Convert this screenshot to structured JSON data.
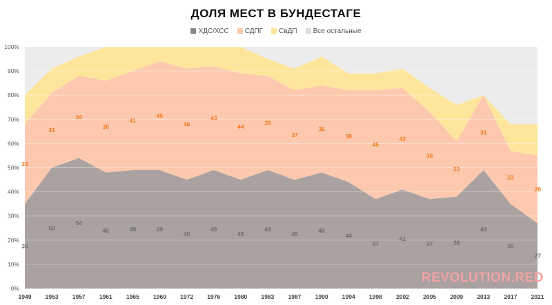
{
  "watermark": "REVOLUTION.RED",
  "chart_data": {
    "type": "area",
    "stacked": true,
    "title": "ДОЛЯ МЕСТ В БУНДЕСТАГЕ",
    "x": [
      "1949",
      "1953",
      "1957",
      "1961",
      "1965",
      "1969",
      "1972",
      "1976",
      "1980",
      "1983",
      "1987",
      "1990",
      "1994",
      "1998",
      "2002",
      "2005",
      "2009",
      "2013",
      "2017",
      "2021"
    ],
    "ylim": [
      0,
      100
    ],
    "yticks": [
      "0%",
      "10%",
      "20%",
      "30%",
      "40%",
      "50%",
      "60%",
      "70%",
      "80%",
      "90%",
      "100%"
    ],
    "legend_position": "top",
    "grid": true,
    "series": [
      {
        "name": "ХДС/ХСС",
        "color": "#aaa1a1",
        "values": [
          35,
          50,
          54,
          48,
          49,
          49,
          45,
          49,
          45,
          49,
          45,
          48,
          44,
          37,
          41,
          37,
          38,
          49,
          35,
          27
        ]
      },
      {
        "name": "СДПГ",
        "color": "#fcc9ae",
        "values": [
          33,
          31,
          34,
          38,
          41,
          45,
          46,
          43,
          44,
          39,
          37,
          36,
          38,
          45,
          42,
          36,
          23,
          31,
          22,
          28
        ]
      },
      {
        "name": "СвДП",
        "color": "#fde59c",
        "values": [
          12,
          10,
          8,
          14,
          10,
          6,
          9,
          8,
          11,
          7,
          9,
          12,
          7,
          7,
          8,
          10,
          15,
          0,
          11,
          13
        ]
      },
      {
        "name": "Все остальные",
        "color": "#ececec",
        "values": [
          20,
          9,
          4,
          0,
          0,
          0,
          0,
          0,
          0,
          5,
          9,
          4,
          11,
          11,
          9,
          17,
          24,
          20,
          32,
          32
        ]
      }
    ],
    "data_labels": {
      "ХДС/ХСС": [
        "35",
        "50",
        "54",
        "48",
        "49",
        "49",
        "45",
        "49",
        "45",
        "49",
        "45",
        "48",
        "44",
        "37",
        "41",
        "37",
        "38",
        "49",
        "35",
        "27"
      ],
      "СДПГ": [
        "33",
        "31",
        "34",
        "38",
        "41",
        "45",
        "46",
        "43",
        "44",
        "39",
        "37",
        "36",
        "38",
        "45",
        "42",
        "36",
        "23",
        "31",
        "22",
        "28"
      ]
    },
    "label_colors": {
      "ХДС/ХСС": "#6e6e6e",
      "СДПГ": "#ee7a1f"
    }
  }
}
